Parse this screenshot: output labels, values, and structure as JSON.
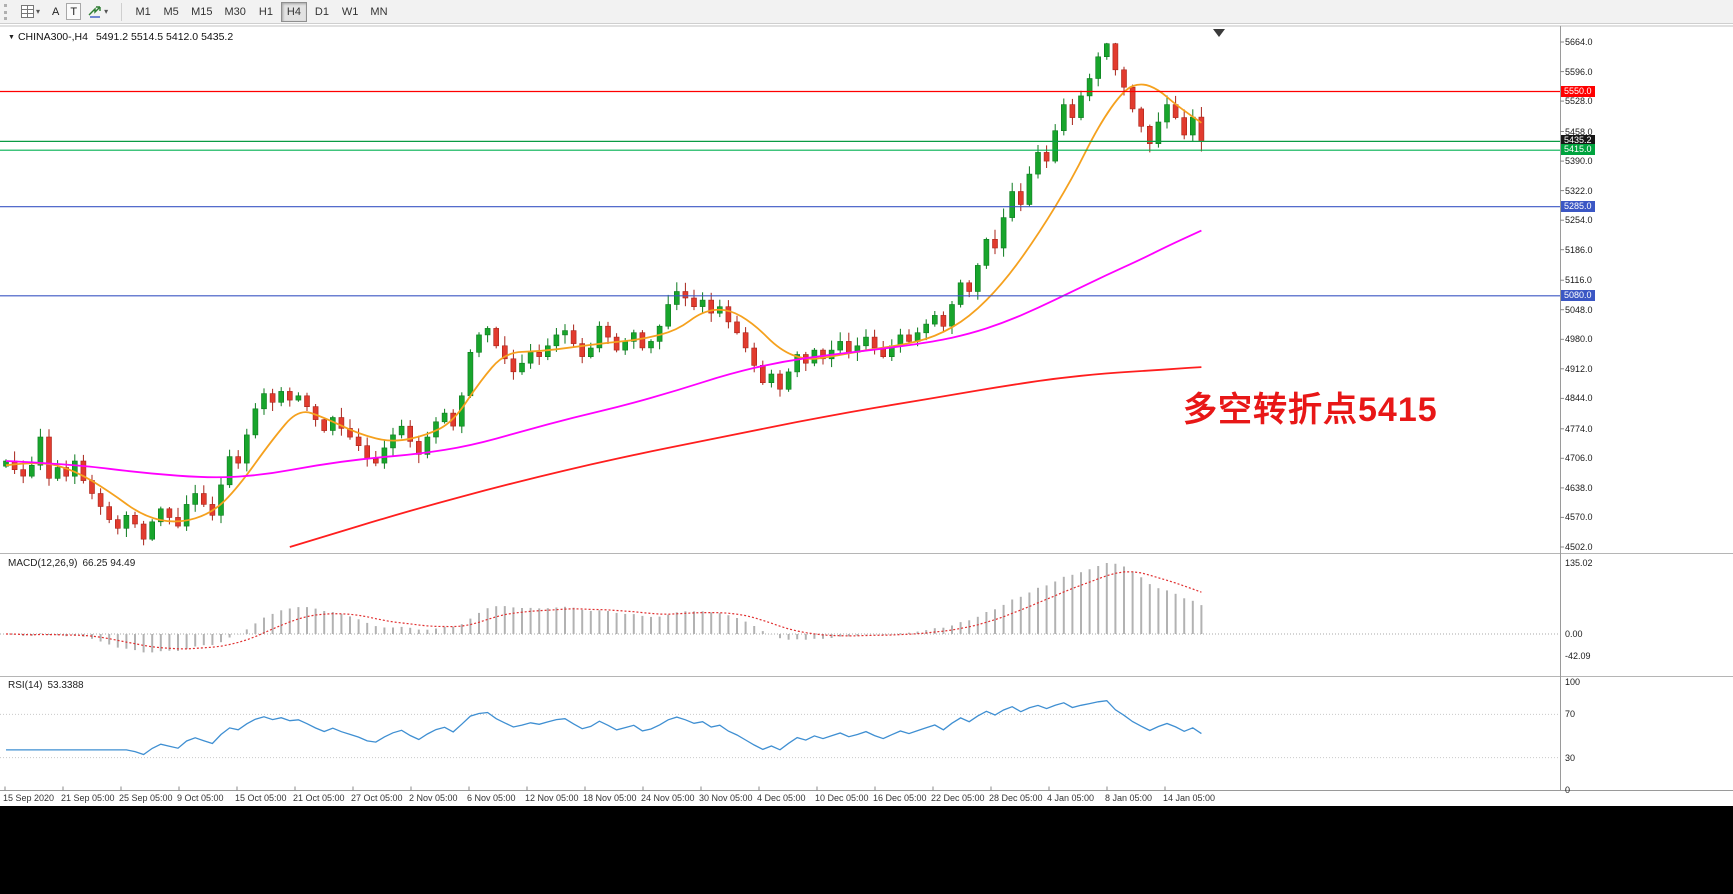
{
  "toolbar": {
    "tools": [
      {
        "label": "A"
      },
      {
        "label": "T"
      }
    ],
    "timeframes": [
      {
        "label": "M1",
        "active": false
      },
      {
        "label": "M5",
        "active": false
      },
      {
        "label": "M15",
        "active": false
      },
      {
        "label": "M30",
        "active": false
      },
      {
        "label": "H1",
        "active": false
      },
      {
        "label": "H4",
        "active": true
      },
      {
        "label": "D1",
        "active": false
      },
      {
        "label": "W1",
        "active": false
      },
      {
        "label": "MN",
        "active": false
      }
    ]
  },
  "chart_header": {
    "symbol": "CHINA300-,H4",
    "ohlc_text": "5491.2 5514.5 5412.0 5435.2"
  },
  "chart_data": {
    "type": "candlestick",
    "symbol": "CHINA300-",
    "timeframe": "H4",
    "title": "CHINA300-,H4",
    "current_bar": {
      "open": 5491.2,
      "high": 5514.5,
      "low": 5412.0,
      "close": 5435.2
    },
    "y_axis": {
      "min": 4502,
      "max": 5664,
      "tick_labels": [
        "5664.0",
        "5596.0",
        "5528.0",
        "5458.0",
        "5390.0",
        "5322.0",
        "5254.0",
        "5186.0",
        "5116.0",
        "5048.0",
        "4980.0",
        "4912.0",
        "4844.0",
        "4774.0",
        "4706.0",
        "4638.0",
        "4570.0",
        "4502.0"
      ]
    },
    "x_axis_labels": [
      "15 Sep 2020",
      "21 Sep 05:00",
      "25 Sep 05:00",
      "9 Oct 05:00",
      "15 Oct 05:00",
      "21 Oct 05:00",
      "27 Oct 05:00",
      "2 Nov 05:00",
      "6 Nov 05:00",
      "12 Nov 05:00",
      "18 Nov 05:00",
      "24 Nov 05:00",
      "30 Nov 05:00",
      "4 Dec 05:00",
      "10 Dec 05:00",
      "16 Dec 05:00",
      "22 Dec 05:00",
      "28 Dec 05:00",
      "4 Jan 05:00",
      "8 Jan 05:00",
      "14 Jan 05:00"
    ],
    "closes": [
      4700,
      4680,
      4665,
      4690,
      4755,
      4660,
      4685,
      4665,
      4700,
      4655,
      4625,
      4595,
      4565,
      4545,
      4575,
      4555,
      4520,
      4560,
      4590,
      4570,
      4550,
      4600,
      4625,
      4600,
      4575,
      4645,
      4710,
      4695,
      4760,
      4820,
      4855,
      4835,
      4860,
      4840,
      4850,
      4825,
      4795,
      4770,
      4800,
      4775,
      4755,
      4735,
      4705,
      4695,
      4730,
      4760,
      4780,
      4745,
      4715,
      4755,
      4790,
      4810,
      4780,
      4850,
      4950,
      4990,
      5005,
      4965,
      4935,
      4905,
      4925,
      4950,
      4940,
      4965,
      4990,
      5000,
      4970,
      4940,
      4960,
      5010,
      4985,
      4955,
      4975,
      4995,
      4960,
      4975,
      5010,
      5060,
      5090,
      5075,
      5055,
      5070,
      5040,
      5055,
      5020,
      4995,
      4960,
      4920,
      4880,
      4900,
      4865,
      4905,
      4945,
      4925,
      4955,
      4935,
      4955,
      4975,
      4950,
      4965,
      4985,
      4960,
      4940,
      4965,
      4990,
      4975,
      4995,
      5015,
      5035,
      5010,
      5060,
      5110,
      5090,
      5150,
      5210,
      5190,
      5260,
      5320,
      5290,
      5360,
      5410,
      5390,
      5460,
      5520,
      5490,
      5540,
      5580,
      5630,
      5660,
      5600,
      5560,
      5510,
      5470,
      5430,
      5480,
      5520,
      5490,
      5450,
      5491.2,
      5435.2
    ],
    "up_color": "#18a52c",
    "down_color": "#e23b2e",
    "horizontal_levels": [
      {
        "price": 5550.0,
        "color": "#ff0000",
        "label_bg": "#ff0000"
      },
      {
        "price": 5435.2,
        "color": "#0a9b44",
        "label_bg": "#161616"
      },
      {
        "price": 5415.0,
        "color": "#00b050",
        "label_bg": "#00a33e"
      },
      {
        "price": 5285.0,
        "color": "#3b57c4",
        "label_bg": "#3b57c4"
      },
      {
        "price": 5080.0,
        "color": "#3b57c4",
        "label_bg": "#3b57c4"
      }
    ],
    "moving_averages": [
      {
        "name": "MA-fast",
        "color": "#f5a11e",
        "points": [
          [
            0,
            4690
          ],
          [
            4,
            4700
          ],
          [
            8,
            4678
          ],
          [
            12,
            4630
          ],
          [
            16,
            4572
          ],
          [
            20,
            4556
          ],
          [
            24,
            4580
          ],
          [
            27,
            4640
          ],
          [
            31,
            4750
          ],
          [
            34,
            4820
          ],
          [
            37,
            4800
          ],
          [
            41,
            4762
          ],
          [
            45,
            4742
          ],
          [
            49,
            4760
          ],
          [
            52,
            4790
          ],
          [
            55,
            4880
          ],
          [
            58,
            4950
          ],
          [
            62,
            4952
          ],
          [
            66,
            4962
          ],
          [
            70,
            4972
          ],
          [
            74,
            4980
          ],
          [
            78,
            5000
          ],
          [
            81,
            5045
          ],
          [
            84,
            5050
          ],
          [
            87,
            5015
          ],
          [
            90,
            4955
          ],
          [
            93,
            4932
          ],
          [
            96,
            4940
          ],
          [
            100,
            4955
          ],
          [
            104,
            4966
          ],
          [
            108,
            4985
          ],
          [
            112,
            5030
          ],
          [
            116,
            5110
          ],
          [
            120,
            5220
          ],
          [
            124,
            5350
          ],
          [
            127,
            5470
          ],
          [
            130,
            5555
          ],
          [
            132,
            5570
          ],
          [
            134,
            5555
          ],
          [
            136,
            5520
          ],
          [
            139,
            5478
          ]
        ]
      },
      {
        "name": "MA-medium",
        "color": "#ff00ff",
        "points": [
          [
            0,
            4700
          ],
          [
            8,
            4692
          ],
          [
            16,
            4672
          ],
          [
            24,
            4660
          ],
          [
            30,
            4668
          ],
          [
            36,
            4690
          ],
          [
            42,
            4706
          ],
          [
            48,
            4716
          ],
          [
            54,
            4735
          ],
          [
            60,
            4768
          ],
          [
            66,
            4800
          ],
          [
            72,
            4828
          ],
          [
            78,
            4862
          ],
          [
            84,
            4900
          ],
          [
            90,
            4928
          ],
          [
            96,
            4945
          ],
          [
            102,
            4958
          ],
          [
            108,
            4975
          ],
          [
            112,
            4992
          ],
          [
            116,
            5018
          ],
          [
            120,
            5052
          ],
          [
            124,
            5090
          ],
          [
            128,
            5128
          ],
          [
            132,
            5164
          ],
          [
            135,
            5194
          ],
          [
            139,
            5230
          ]
        ]
      },
      {
        "name": "MA-slow",
        "color": "#ff1e1e",
        "points": [
          [
            33,
            4502
          ],
          [
            38,
            4532
          ],
          [
            44,
            4568
          ],
          [
            50,
            4602
          ],
          [
            56,
            4634
          ],
          [
            62,
            4664
          ],
          [
            68,
            4692
          ],
          [
            74,
            4718
          ],
          [
            80,
            4742
          ],
          [
            86,
            4766
          ],
          [
            92,
            4790
          ],
          [
            98,
            4812
          ],
          [
            104,
            4832
          ],
          [
            110,
            4852
          ],
          [
            116,
            4872
          ],
          [
            122,
            4890
          ],
          [
            128,
            4902
          ],
          [
            133,
            4908
          ],
          [
            136,
            4912
          ],
          [
            139,
            4916
          ]
        ]
      }
    ],
    "annotation": {
      "text": "多空转折点5415",
      "color": "#e81717"
    },
    "indicators": {
      "macd": {
        "label": "MACD(12,26,9)",
        "values_text": "66.25 94.49",
        "fast": 12,
        "slow": 26,
        "signal": 9,
        "axis_labels": [
          "135.02",
          "0.00",
          "-42.09"
        ],
        "histogram_color": "#b2b2b2",
        "signal_color": "#e03030"
      },
      "rsi": {
        "label": "RSI(14)",
        "value_text": "53.3388",
        "period": 14,
        "axis_labels": [
          "100",
          "70",
          "30",
          "0"
        ],
        "line_color": "#3f8fd2",
        "levels": [
          70,
          30
        ]
      }
    }
  }
}
